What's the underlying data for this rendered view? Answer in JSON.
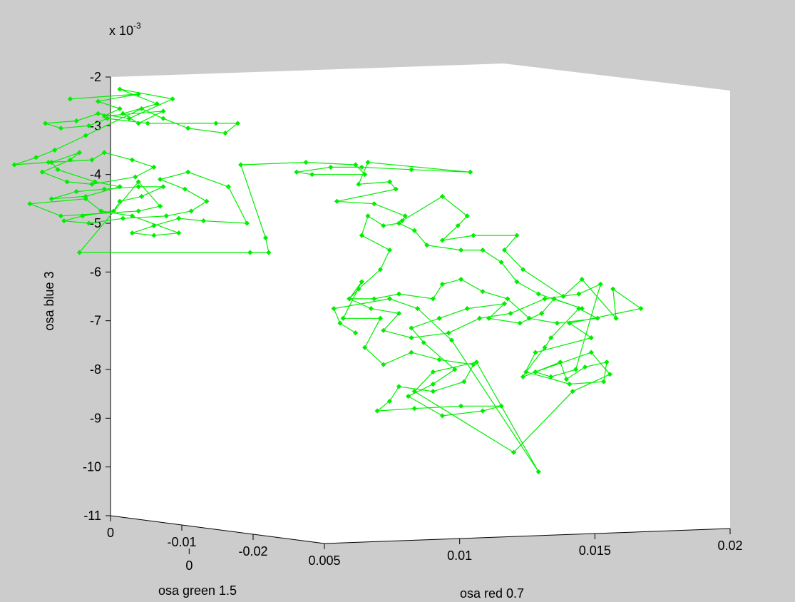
{
  "chart_data": {
    "type": "scatter",
    "style": "line-with-diamond-markers",
    "projection": "3d",
    "exponent_label": {
      "base": "x 10",
      "exp": "-3"
    },
    "axes": {
      "x": {
        "label": "osa red 0.7",
        "ticks": [
          "0",
          "0.005",
          "0.01",
          "0.015",
          "0.02"
        ],
        "range": [
          0,
          0.02
        ]
      },
      "y": {
        "label": "osa green 1.5",
        "ticks": [
          "0",
          "-0.01",
          "-0.02"
        ],
        "range": [
          -0.03,
          0
        ]
      },
      "z": {
        "label": "osa blue 3",
        "ticks": [
          "-2",
          "-3",
          "-4",
          "-5",
          "-6",
          "-7",
          "-8",
          "-9",
          "-10",
          "-11"
        ],
        "range": [
          -11,
          -2
        ]
      }
    },
    "series": [
      {
        "color": "#00ee00",
        "marker": "diamond",
        "projected_points_xz": [
          [
            -0.0013,
            -2.45
          ],
          [
            0.0009,
            -2.35
          ],
          [
            -0.0004,
            -2.5
          ],
          [
            0.0003,
            -2.65
          ],
          [
            -0.0002,
            -2.8
          ],
          [
            0.0017,
            -2.7
          ],
          [
            0.0009,
            -2.95
          ],
          [
            0.0004,
            -2.75
          ],
          [
            0.0015,
            -2.55
          ],
          [
            0.0003,
            -2.25
          ],
          [
            0.002,
            -2.45
          ],
          [
            0.0006,
            -2.85
          ],
          [
            -0.0004,
            -2.75
          ],
          [
            -0.0011,
            -2.9
          ],
          [
            -0.0021,
            -2.95
          ],
          [
            -0.0016,
            -3.05
          ],
          [
            -0.0007,
            -3.0
          ],
          [
            -0.0001,
            -2.85
          ],
          [
            0.0012,
            -2.95
          ],
          [
            0.0034,
            -2.95
          ],
          [
            0.0041,
            -2.95
          ],
          [
            0.0037,
            -3.15
          ],
          [
            0.0025,
            -3.05
          ],
          [
            0.0017,
            -2.85
          ],
          [
            0.001,
            -2.65
          ],
          [
            -0.0008,
            -3.2
          ],
          [
            -0.0018,
            -3.5
          ],
          [
            -0.0024,
            -3.65
          ],
          [
            -0.0031,
            -3.8
          ],
          [
            -0.002,
            -3.75
          ],
          [
            -0.0006,
            -3.7
          ],
          [
            -0.0002,
            -3.55
          ],
          [
            0.0007,
            -3.7
          ],
          [
            0.0014,
            -3.85
          ],
          [
            0.0008,
            -4.05
          ],
          [
            -0.0006,
            -4.2
          ],
          [
            -0.0014,
            -4.15
          ],
          [
            -0.0022,
            -3.95
          ],
          [
            -0.0013,
            -3.7
          ],
          [
            -0.001,
            -3.55
          ],
          [
            -0.0019,
            -3.75
          ],
          [
            -0.0017,
            -3.9
          ],
          [
            -0.0005,
            -4.15
          ],
          [
            0.0003,
            -4.25
          ],
          [
            -0.0008,
            -4.45
          ],
          [
            -0.0019,
            -4.5
          ],
          [
            -0.0011,
            -4.35
          ],
          [
            -0.0002,
            -4.3
          ],
          [
            0.0009,
            -4.25
          ],
          [
            0.0017,
            -4.25
          ],
          [
            0.001,
            -4.45
          ],
          [
            0.0003,
            -4.55
          ],
          [
            0.0001,
            -4.75
          ],
          [
            -0.0009,
            -4.85
          ],
          [
            -0.0015,
            -4.95
          ],
          [
            -0.0007,
            -5.0
          ],
          [
            0.0004,
            -4.9
          ],
          [
            0.0018,
            -4.85
          ],
          [
            0.0026,
            -4.75
          ],
          [
            0.0031,
            -4.55
          ],
          [
            0.0024,
            -4.3
          ],
          [
            0.0016,
            -4.1
          ],
          [
            0.0025,
            -3.95
          ],
          [
            0.0038,
            -4.25
          ],
          [
            0.0044,
            -5.0
          ],
          [
            0.003,
            -4.95
          ],
          [
            0.0022,
            -4.9
          ],
          [
            0.0014,
            -5.05
          ],
          [
            0.0007,
            -5.2
          ],
          [
            0.0014,
            -5.25
          ],
          [
            0.0022,
            -5.2
          ],
          [
            0.0007,
            -4.85
          ],
          [
            -0.0003,
            -4.75
          ],
          [
            -0.0008,
            -4.5
          ],
          [
            -0.0026,
            -4.6
          ],
          [
            -0.0016,
            -4.85
          ],
          [
            0.0009,
            -4.75
          ],
          [
            0.0016,
            -4.65
          ],
          [
            0.0009,
            -4.15
          ],
          [
            -0.001,
            -5.6
          ],
          [
            0.0045,
            -5.6
          ],
          [
            0.0051,
            -5.6
          ],
          [
            0.005,
            -5.3
          ],
          [
            0.0042,
            -3.8
          ],
          [
            0.0063,
            -3.75
          ],
          [
            0.0079,
            -3.8
          ],
          [
            0.0082,
            -4.0
          ],
          [
            0.0065,
            -4.0
          ],
          [
            0.006,
            -3.95
          ],
          [
            0.0071,
            -3.85
          ],
          [
            0.0081,
            -3.85
          ],
          [
            0.0097,
            -3.9
          ],
          [
            0.0116,
            -3.95
          ],
          [
            0.0083,
            -3.75
          ],
          [
            0.008,
            -4.2
          ],
          [
            0.009,
            -4.15
          ],
          [
            0.0092,
            -4.3
          ],
          [
            0.0073,
            -4.55
          ],
          [
            0.0085,
            -4.6
          ],
          [
            0.0095,
            -4.85
          ],
          [
            0.0094,
            -4.95
          ],
          [
            0.0107,
            -4.45
          ],
          [
            0.0115,
            -4.85
          ],
          [
            0.0112,
            -5.05
          ],
          [
            0.0107,
            -5.35
          ],
          [
            0.0117,
            -5.25
          ],
          [
            0.0131,
            -5.25
          ],
          [
            0.0127,
            -5.55
          ],
          [
            0.0133,
            -5.95
          ],
          [
            0.0146,
            -6.5
          ],
          [
            0.0152,
            -6.15
          ],
          [
            0.0163,
            -6.95
          ],
          [
            0.0162,
            -6.35
          ],
          [
            0.0171,
            -6.75
          ],
          [
            0.0148,
            -7.05
          ],
          [
            0.0155,
            -7.35
          ],
          [
            0.0137,
            -7.65
          ],
          [
            0.0133,
            -8.15
          ],
          [
            0.0145,
            -7.85
          ],
          [
            0.0147,
            -8.2
          ],
          [
            0.0153,
            -7.95
          ],
          [
            0.016,
            -7.85
          ],
          [
            0.0159,
            -8.25
          ],
          [
            0.0148,
            -8.3
          ],
          [
            0.0134,
            -8.05
          ],
          [
            0.014,
            -7.55
          ],
          [
            0.0142,
            -7.35
          ],
          [
            0.0151,
            -6.75
          ],
          [
            0.0157,
            -6.95
          ],
          [
            0.0144,
            -7.05
          ],
          [
            0.0135,
            -6.95
          ],
          [
            0.0128,
            -6.55
          ],
          [
            0.012,
            -6.4
          ],
          [
            0.0113,
            -6.15
          ],
          [
            0.0107,
            -6.25
          ],
          [
            0.0104,
            -6.55
          ],
          [
            0.0093,
            -6.45
          ],
          [
            0.0085,
            -6.55
          ],
          [
            0.0077,
            -6.55
          ],
          [
            0.0081,
            -6.2
          ],
          [
            0.0075,
            -6.95
          ],
          [
            0.0087,
            -6.95
          ],
          [
            0.0082,
            -7.55
          ],
          [
            0.0088,
            -7.9
          ],
          [
            0.0097,
            -7.65
          ],
          [
            0.0106,
            -7.8
          ],
          [
            0.0117,
            -7.9
          ],
          [
            0.0114,
            -8.25
          ],
          [
            0.0104,
            -8.45
          ],
          [
            0.0093,
            -8.35
          ],
          [
            0.009,
            -8.65
          ],
          [
            0.0086,
            -8.85
          ],
          [
            0.0098,
            -8.8
          ],
          [
            0.0113,
            -8.75
          ],
          [
            0.0126,
            -8.75
          ],
          [
            0.012,
            -8.85
          ],
          [
            0.0107,
            -8.95
          ],
          [
            0.0096,
            -8.55
          ],
          [
            0.0104,
            -8.3
          ],
          [
            0.0111,
            -8.0
          ],
          [
            0.0101,
            -7.45
          ],
          [
            0.0097,
            -7.15
          ],
          [
            0.0106,
            -6.95
          ],
          [
            0.0115,
            -6.75
          ],
          [
            0.0127,
            -6.65
          ],
          [
            0.0122,
            -6.95
          ],
          [
            0.0132,
            -7.05
          ],
          [
            0.0139,
            -6.85
          ],
          [
            0.0143,
            -6.55
          ],
          [
            0.0152,
            -6.75
          ],
          [
            0.0138,
            -6.45
          ],
          [
            0.0131,
            -6.2
          ],
          [
            0.0126,
            -5.8
          ],
          [
            0.012,
            -5.55
          ],
          [
            0.0113,
            -5.55
          ],
          [
            0.0102,
            -5.45
          ],
          [
            0.0098,
            -5.15
          ],
          [
            0.0093,
            -5.0
          ],
          [
            0.0088,
            -5.05
          ],
          [
            0.0083,
            -4.85
          ],
          [
            0.0081,
            -5.25
          ],
          [
            0.009,
            -5.55
          ],
          [
            0.0087,
            -5.95
          ],
          [
            0.008,
            -6.35
          ],
          [
            0.0077,
            -6.55
          ],
          [
            0.0084,
            -6.75
          ],
          [
            0.0093,
            -6.85
          ],
          [
            0.0088,
            -7.2
          ],
          [
            0.0097,
            -7.35
          ],
          [
            0.0109,
            -7.25
          ],
          [
            0.0119,
            -6.95
          ],
          [
            0.0129,
            -6.85
          ],
          [
            0.014,
            -6.55
          ],
          [
            0.0151,
            -6.45
          ],
          [
            0.0158,
            -6.25
          ],
          [
            0.015,
            -8.0
          ],
          [
            0.0142,
            -8.15
          ],
          [
            0.0137,
            -8.05
          ],
          [
            0.0155,
            -7.65
          ],
          [
            0.0161,
            -8.1
          ],
          [
            0.0149,
            -8.45
          ],
          [
            0.013,
            -9.7
          ],
          [
            0.0098,
            -8.45
          ],
          [
            0.0104,
            -8.05
          ],
          [
            0.0118,
            -7.85
          ],
          [
            0.0138,
            -10.1
          ],
          [
            0.011,
            -7.4
          ],
          [
            0.0099,
            -6.75
          ],
          [
            0.009,
            -6.55
          ],
          [
            0.0072,
            -6.75
          ],
          [
            0.0074,
            -7.05
          ],
          [
            0.0079,
            -7.25
          ]
        ]
      }
    ]
  }
}
